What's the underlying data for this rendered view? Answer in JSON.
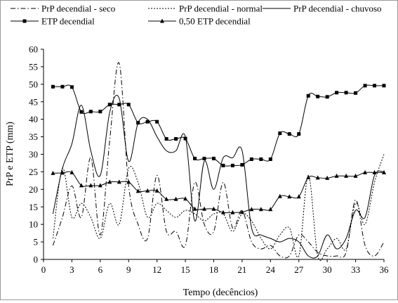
{
  "chart_data": {
    "type": "line",
    "xlabel": "Tempo (decêncios)",
    "ylabel": "PrP e ETP (mm)",
    "xlim": [
      0,
      36
    ],
    "ylim": [
      0,
      60
    ],
    "x_ticks": [
      0,
      3,
      6,
      9,
      12,
      15,
      18,
      21,
      24,
      27,
      30,
      33,
      36
    ],
    "y_ticks": [
      0,
      5,
      10,
      15,
      20,
      25,
      30,
      35,
      40,
      45,
      50,
      55,
      60
    ],
    "grid": false,
    "legend_position": "top",
    "series": [
      {
        "name": "PrP decendial - seco",
        "style": "dashdot",
        "marker": "none",
        "x": [
          1,
          2,
          3,
          4,
          5,
          6,
          7,
          8,
          9,
          10,
          11,
          12,
          13,
          14,
          15,
          16,
          17,
          18,
          19,
          20,
          21,
          22,
          23,
          24,
          25,
          26,
          27,
          28,
          29,
          30,
          31,
          32,
          33,
          34,
          35,
          36
        ],
        "values": [
          4,
          12,
          21,
          12,
          29,
          7,
          34,
          56,
          21,
          10,
          6,
          24,
          8,
          8,
          4,
          22,
          10,
          8,
          22,
          9,
          14,
          5,
          3,
          4,
          1,
          1,
          7,
          5,
          2,
          1,
          1,
          2,
          17,
          4,
          1,
          5
        ]
      },
      {
        "name": "PrP decendial - normal",
        "style": "dotted",
        "marker": "none",
        "x": [
          1,
          2,
          3,
          4,
          5,
          6,
          7,
          8,
          9,
          10,
          11,
          12,
          13,
          14,
          15,
          16,
          17,
          18,
          19,
          20,
          21,
          22,
          23,
          24,
          25,
          26,
          27,
          28,
          29,
          30,
          31,
          32,
          33,
          34,
          35,
          36
        ],
        "values": [
          6,
          26,
          12,
          16,
          12,
          6,
          16,
          10,
          26,
          22,
          12,
          16,
          14,
          12,
          14,
          13,
          11,
          13,
          13,
          8,
          13,
          11,
          6,
          3,
          7,
          9,
          1,
          24,
          1,
          3,
          6,
          3,
          16,
          10,
          22,
          30
        ]
      },
      {
        "name": "PrP decendial - chuvoso",
        "style": "solid",
        "marker": "none",
        "x": [
          1,
          2,
          3,
          4,
          5,
          6,
          7,
          8,
          9,
          10,
          11,
          12,
          13,
          14,
          15,
          16,
          17,
          18,
          19,
          20,
          21,
          22,
          23,
          24,
          25,
          26,
          27,
          28,
          29,
          30,
          31,
          32,
          33,
          34,
          35,
          36
        ],
        "values": [
          13,
          26,
          33,
          44,
          31,
          24,
          42,
          46,
          28,
          39,
          40,
          35,
          31,
          31,
          35,
          11,
          28,
          20,
          29,
          29,
          31,
          9,
          7,
          6,
          5,
          6,
          5,
          1,
          1,
          7,
          3,
          6,
          14,
          12,
          24,
          25
        ]
      },
      {
        "name": "ETP decendial",
        "style": "solid",
        "marker": "square",
        "x": [
          1,
          2,
          3,
          4,
          5,
          6,
          7,
          8,
          9,
          10,
          11,
          12,
          13,
          14,
          15,
          16,
          17,
          18,
          19,
          20,
          21,
          22,
          23,
          24,
          25,
          26,
          27,
          28,
          29,
          30,
          31,
          32,
          33,
          34,
          35,
          36
        ],
        "values": [
          49.3,
          49.3,
          49.2,
          42.1,
          42.2,
          42.2,
          44.2,
          44.2,
          44.2,
          39,
          39.3,
          39.3,
          34.4,
          34.4,
          34.5,
          28.8,
          28.8,
          28.8,
          26.8,
          26.8,
          27,
          28.6,
          28.6,
          28.6,
          36,
          35.8,
          35.8,
          46.7,
          46.5,
          46.4,
          47.6,
          47.6,
          47.5,
          49.6,
          49.6,
          49.6
        ]
      },
      {
        "name": "0,50 ETP decendial",
        "style": "solid",
        "marker": "triangle",
        "x": [
          1,
          2,
          3,
          4,
          5,
          6,
          7,
          8,
          9,
          10,
          11,
          12,
          13,
          14,
          15,
          16,
          17,
          18,
          19,
          20,
          21,
          22,
          23,
          24,
          25,
          26,
          27,
          28,
          29,
          30,
          31,
          32,
          33,
          34,
          35,
          36
        ],
        "values": [
          24.6,
          24.7,
          24.8,
          21.1,
          21.1,
          21.1,
          22.1,
          22.1,
          22.1,
          19.5,
          19.6,
          19.6,
          17.2,
          17.2,
          17.3,
          14.4,
          14.4,
          14.4,
          13.4,
          13.4,
          13.5,
          14.3,
          14.3,
          14.3,
          18,
          17.9,
          17.9,
          23.4,
          23.3,
          23.2,
          23.8,
          23.8,
          23.8,
          24.8,
          24.8,
          24.8
        ]
      }
    ]
  }
}
